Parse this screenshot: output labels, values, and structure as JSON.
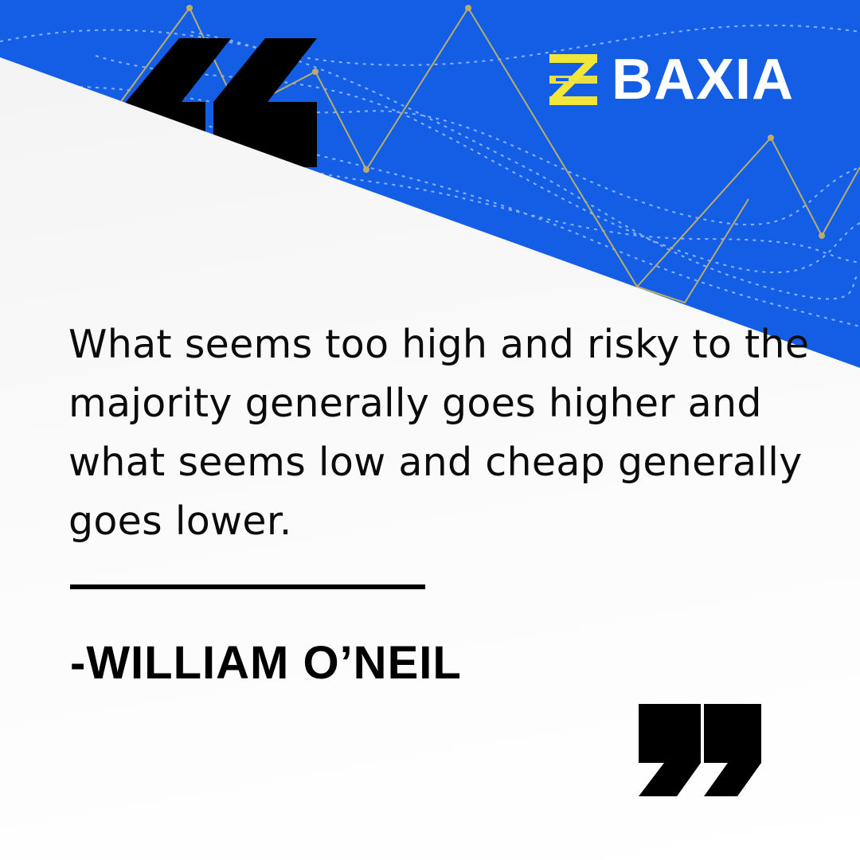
{
  "brand": {
    "name": "BAXIA",
    "colors": {
      "background": "#145ee6",
      "mark": "#f2e63a",
      "wordmark": "#ffffff",
      "chart_line": "#b9ad6a"
    }
  },
  "quote": {
    "text": "What seems too high and risky to the majority generally goes higher and what seems low and cheap generally goes lower.",
    "author": "-WILLIAM O’NEIL"
  },
  "icons": {
    "open_quote": "open-quote-icon",
    "close_quote": "close-quote-icon",
    "logo_mark": "baxia-logo-icon"
  }
}
